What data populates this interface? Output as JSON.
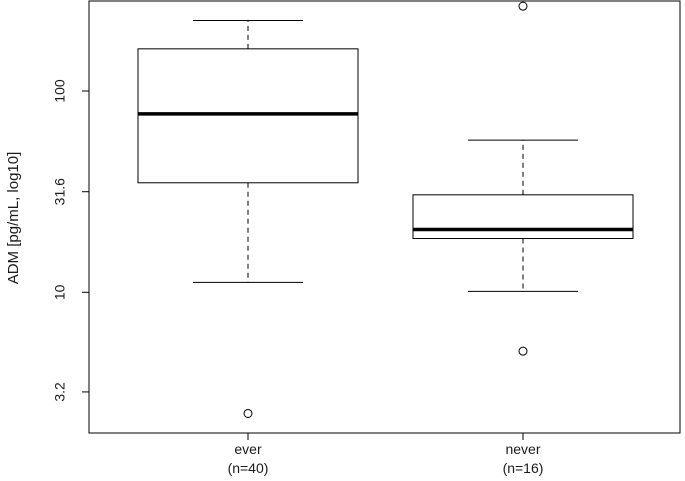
{
  "chart_data": {
    "type": "box",
    "ylabel": "ADM [pg/mL, log10]",
    "y_scale": "log10",
    "ylim": [
      2.0,
      280
    ],
    "y_ticks": [
      3.2,
      10,
      31.6,
      100
    ],
    "y_tick_labels": [
      "3.2",
      "10",
      "31.6",
      "100"
    ],
    "categories": [
      "ever\n(n=40)",
      "never\n(n=16)"
    ],
    "category_labels": [
      {
        "line1": "ever",
        "line2": "(n=40)"
      },
      {
        "line1": "never",
        "line2": "(n=16)"
      }
    ],
    "groups": [
      {
        "name": "ever",
        "n": 40,
        "whisker_low": 11.2,
        "q1": 35.0,
        "median": 77.0,
        "q3": 162.0,
        "whisker_high": 224.0,
        "outliers": [
          2.5
        ]
      },
      {
        "name": "never",
        "n": 16,
        "whisker_low": 10.1,
        "q1": 18.5,
        "median": 20.5,
        "q3": 30.5,
        "whisker_high": 57.0,
        "outliers": [
          264.0,
          5.1
        ]
      }
    ],
    "grid": false,
    "legend": "none"
  }
}
